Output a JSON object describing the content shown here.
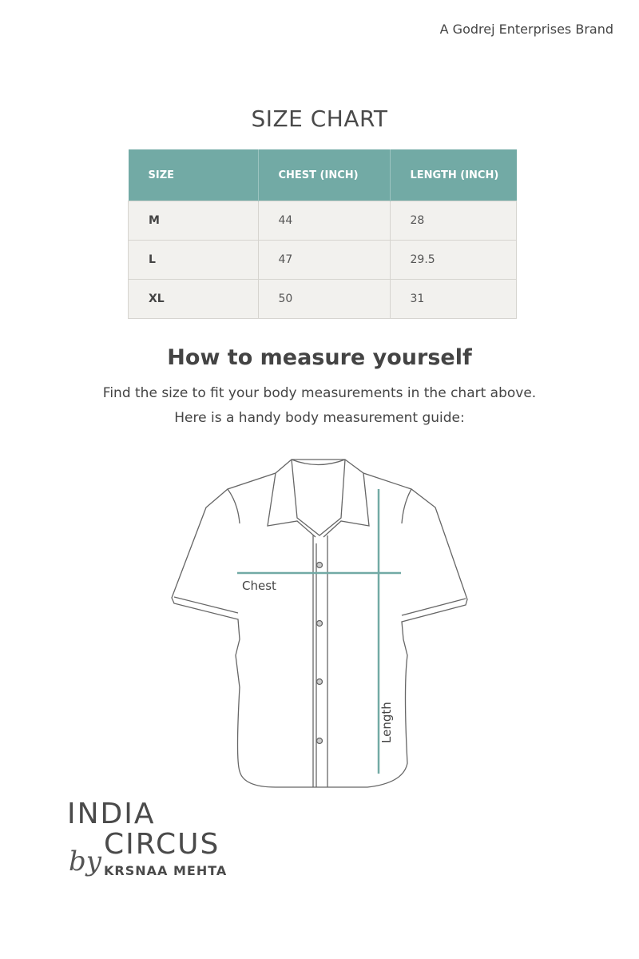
{
  "brand_tagline": "A Godrej Enterprises Brand",
  "title": "SIZE CHART",
  "table": {
    "headers": [
      "SIZE",
      "CHEST (INCH)",
      "LENGTH (INCH)"
    ],
    "rows": [
      [
        "M",
        "44",
        "28"
      ],
      [
        "L",
        "47",
        "29.5"
      ],
      [
        "XL",
        "50",
        "31"
      ]
    ]
  },
  "guide": {
    "heading": "How to measure yourself",
    "line1": "Find the size to fit your body measurements in the chart above.",
    "line2": "Here is a handy body measurement guide:",
    "chest_label": "Chest",
    "length_label": "Length",
    "measure_line_color": "#72aaa5"
  },
  "logo": {
    "line1": "INDIA",
    "line2": "CIRCUS",
    "by": "by",
    "line3": "KRSNAA MEHTA"
  },
  "colors": {
    "header_bg": "#72aaa5",
    "row_bg": "#f2f1ee"
  }
}
